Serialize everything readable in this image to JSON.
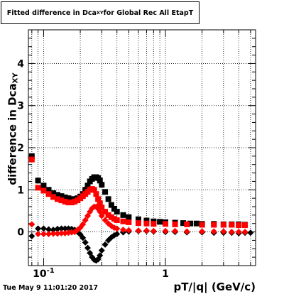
{
  "title": {
    "prefix": "Fitted difference in Dca",
    "subscript": "XY",
    "suffix": " for Global Rec All EtapT"
  },
  "footer": {
    "timestamp": "Tue May  9 11:01:20 2017"
  },
  "chart_data": {
    "type": "scatter",
    "title": "Fitted difference in Dca_XY for Global Rec All EtapT",
    "xlabel": "pT/|q| (GeV/c)",
    "ylabel": "difference in Dca_XY",
    "xscale": "log",
    "xlim": [
      0.075,
      5.5
    ],
    "ylim": [
      -0.8,
      4.8
    ],
    "grid": true,
    "x_tick_labels": [
      "10^-1",
      "1"
    ],
    "x_tick_values": [
      0.1,
      1
    ],
    "y_ticks": [
      0,
      1,
      2,
      3,
      4
    ],
    "series": [
      {
        "marker": "square",
        "color": "#000000",
        "points": [
          [
            0.08,
            1.8
          ],
          [
            0.09,
            1.22
          ],
          [
            0.1,
            1.1
          ],
          [
            0.11,
            1.0
          ],
          [
            0.12,
            0.92
          ],
          [
            0.13,
            0.88
          ],
          [
            0.14,
            0.85
          ],
          [
            0.15,
            0.82
          ],
          [
            0.16,
            0.8
          ],
          [
            0.17,
            0.78
          ],
          [
            0.18,
            0.78
          ],
          [
            0.19,
            0.8
          ],
          [
            0.2,
            0.84
          ],
          [
            0.21,
            0.9
          ],
          [
            0.22,
            1.0
          ],
          [
            0.23,
            1.1
          ],
          [
            0.24,
            1.2
          ],
          [
            0.25,
            1.26
          ],
          [
            0.26,
            1.3
          ],
          [
            0.27,
            1.3
          ],
          [
            0.28,
            1.28
          ],
          [
            0.29,
            1.22
          ],
          [
            0.3,
            1.12
          ],
          [
            0.32,
            0.95
          ],
          [
            0.34,
            0.78
          ],
          [
            0.36,
            0.64
          ],
          [
            0.38,
            0.55
          ],
          [
            0.4,
            0.48
          ],
          [
            0.45,
            0.4
          ],
          [
            0.5,
            0.35
          ],
          [
            0.6,
            0.3
          ],
          [
            0.7,
            0.27
          ],
          [
            0.8,
            0.25
          ],
          [
            0.9,
            0.24
          ],
          [
            1.0,
            0.23
          ],
          [
            1.2,
            0.22
          ],
          [
            1.4,
            0.21
          ],
          [
            1.6,
            0.2
          ],
          [
            1.8,
            0.2
          ],
          [
            2.0,
            0.19
          ],
          [
            2.5,
            0.19
          ],
          [
            3.0,
            0.18
          ],
          [
            3.5,
            0.18
          ],
          [
            4.0,
            0.18
          ],
          [
            4.5,
            0.17
          ]
        ]
      },
      {
        "marker": "square",
        "color": "#ff0000",
        "points": [
          [
            0.08,
            1.72
          ],
          [
            0.09,
            1.05
          ],
          [
            0.1,
            0.98
          ],
          [
            0.11,
            0.9
          ],
          [
            0.12,
            0.83
          ],
          [
            0.13,
            0.78
          ],
          [
            0.14,
            0.75
          ],
          [
            0.15,
            0.72
          ],
          [
            0.16,
            0.7
          ],
          [
            0.17,
            0.7
          ],
          [
            0.18,
            0.72
          ],
          [
            0.19,
            0.75
          ],
          [
            0.2,
            0.8
          ],
          [
            0.21,
            0.85
          ],
          [
            0.22,
            0.9
          ],
          [
            0.23,
            0.95
          ],
          [
            0.24,
            1.0
          ],
          [
            0.25,
            1.02
          ],
          [
            0.26,
            1.0
          ],
          [
            0.27,
            0.9
          ],
          [
            0.28,
            0.78
          ],
          [
            0.29,
            0.68
          ],
          [
            0.3,
            0.58
          ],
          [
            0.32,
            0.48
          ],
          [
            0.34,
            0.4
          ],
          [
            0.36,
            0.35
          ],
          [
            0.38,
            0.31
          ],
          [
            0.4,
            0.28
          ],
          [
            0.45,
            0.25
          ],
          [
            0.5,
            0.23
          ],
          [
            0.6,
            0.21
          ],
          [
            0.7,
            0.2
          ],
          [
            0.8,
            0.19
          ],
          [
            1.0,
            0.19
          ],
          [
            1.2,
            0.18
          ],
          [
            1.5,
            0.18
          ],
          [
            2.0,
            0.17
          ],
          [
            2.5,
            0.17
          ],
          [
            3.0,
            0.17
          ],
          [
            3.5,
            0.17
          ],
          [
            4.0,
            0.16
          ],
          [
            4.5,
            0.16
          ]
        ]
      },
      {
        "marker": "diamond",
        "color": "#000000",
        "points": [
          [
            0.08,
            -0.1
          ],
          [
            0.09,
            0.08
          ],
          [
            0.1,
            0.08
          ],
          [
            0.11,
            0.06
          ],
          [
            0.12,
            0.05
          ],
          [
            0.13,
            0.07
          ],
          [
            0.14,
            0.08
          ],
          [
            0.15,
            0.08
          ],
          [
            0.16,
            0.08
          ],
          [
            0.17,
            0.07
          ],
          [
            0.18,
            0.05
          ],
          [
            0.19,
            0.0
          ],
          [
            0.2,
            -0.06
          ],
          [
            0.21,
            -0.14
          ],
          [
            0.22,
            -0.25
          ],
          [
            0.23,
            -0.38
          ],
          [
            0.24,
            -0.5
          ],
          [
            0.25,
            -0.6
          ],
          [
            0.26,
            -0.66
          ],
          [
            0.27,
            -0.68
          ],
          [
            0.28,
            -0.65
          ],
          [
            0.29,
            -0.56
          ],
          [
            0.3,
            -0.44
          ],
          [
            0.32,
            -0.3
          ],
          [
            0.34,
            -0.2
          ],
          [
            0.36,
            -0.13
          ],
          [
            0.38,
            -0.08
          ],
          [
            0.4,
            -0.05
          ],
          [
            0.45,
            -0.01
          ],
          [
            0.5,
            0.01
          ],
          [
            0.6,
            0.02
          ],
          [
            0.7,
            0.02
          ],
          [
            0.8,
            0.01
          ],
          [
            1.0,
            0.0
          ],
          [
            1.2,
            0.0
          ],
          [
            1.5,
            -0.01
          ],
          [
            2.0,
            -0.01
          ],
          [
            2.5,
            -0.02
          ],
          [
            3.0,
            -0.02
          ],
          [
            3.5,
            -0.02
          ],
          [
            4.0,
            -0.03
          ],
          [
            4.5,
            -0.02
          ],
          [
            5.0,
            -0.02
          ]
        ]
      },
      {
        "marker": "diamond",
        "color": "#ff0000",
        "points": [
          [
            0.08,
            0.18
          ],
          [
            0.09,
            -0.05
          ],
          [
            0.1,
            -0.05
          ],
          [
            0.11,
            -0.05
          ],
          [
            0.12,
            -0.04
          ],
          [
            0.13,
            -0.04
          ],
          [
            0.14,
            -0.03
          ],
          [
            0.15,
            -0.03
          ],
          [
            0.16,
            -0.02
          ],
          [
            0.17,
            -0.01
          ],
          [
            0.18,
            0.0
          ],
          [
            0.19,
            0.05
          ],
          [
            0.2,
            0.1
          ],
          [
            0.21,
            0.18
          ],
          [
            0.22,
            0.28
          ],
          [
            0.23,
            0.38
          ],
          [
            0.24,
            0.48
          ],
          [
            0.25,
            0.56
          ],
          [
            0.26,
            0.6
          ],
          [
            0.27,
            0.6
          ],
          [
            0.28,
            0.55
          ],
          [
            0.29,
            0.48
          ],
          [
            0.3,
            0.38
          ],
          [
            0.32,
            0.28
          ],
          [
            0.34,
            0.2
          ],
          [
            0.36,
            0.14
          ],
          [
            0.38,
            0.1
          ],
          [
            0.4,
            0.08
          ],
          [
            0.45,
            0.05
          ],
          [
            0.5,
            0.04
          ],
          [
            0.6,
            0.03
          ],
          [
            0.7,
            0.03
          ],
          [
            0.8,
            0.02
          ],
          [
            1.0,
            0.02
          ],
          [
            1.2,
            0.02
          ],
          [
            1.5,
            0.01
          ],
          [
            2.0,
            0.01
          ],
          [
            2.5,
            0.01
          ],
          [
            3.0,
            0.01
          ],
          [
            3.5,
            0.0
          ],
          [
            4.0,
            0.0
          ],
          [
            4.5,
            0.0
          ]
        ]
      }
    ]
  }
}
